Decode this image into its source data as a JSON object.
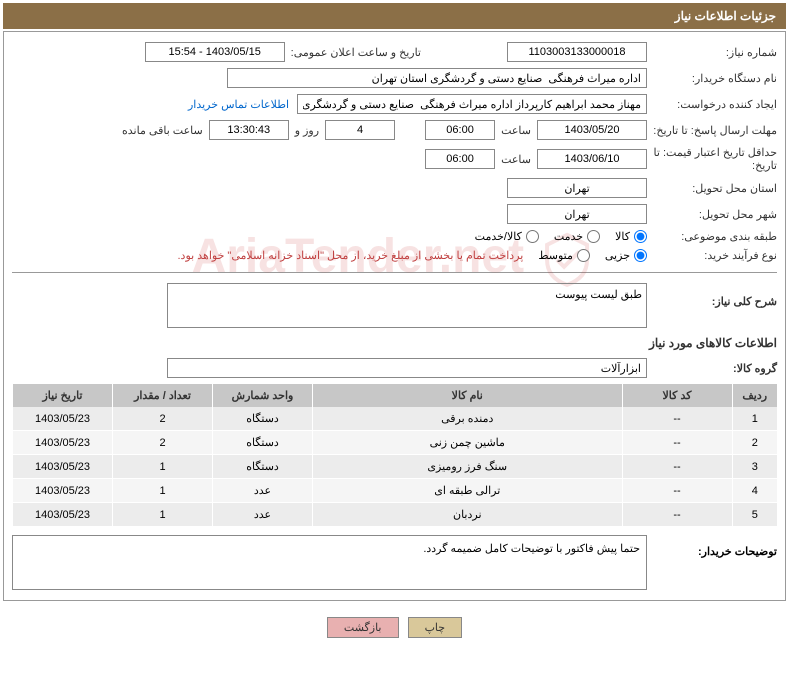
{
  "header": {
    "title": "جزئیات اطلاعات نیاز"
  },
  "fields": {
    "need_number_label": "شماره نیاز:",
    "need_number": "1103003133000018",
    "announce_date_label": "تاریخ و ساعت اعلان عمومی:",
    "announce_date": "1403/05/15 - 15:54",
    "buyer_org_label": "نام دستگاه خریدار:",
    "buyer_org": "اداره میراث فرهنگی  صنایع دستی و گردشگری استان تهران",
    "requester_label": "ایجاد کننده درخواست:",
    "requester": "مهناز محمد ابراهیم کارپرداز اداره میراث فرهنگی  صنایع دستی و گردشگری استا",
    "contact_link": "اطلاعات تماس خریدار",
    "deadline_label": "مهلت ارسال پاسخ: تا تاریخ:",
    "deadline_date": "1403/05/20",
    "time_label": "ساعت",
    "deadline_time": "06:00",
    "days_count": "4",
    "days_and": "روز و",
    "remaining_time": "13:30:43",
    "remaining_label": "ساعت باقی مانده",
    "min_valid_label": "حداقل تاریخ اعتبار قیمت: تا تاریخ:",
    "min_valid_date": "1403/06/10",
    "min_valid_time": "06:00",
    "province_label": "استان محل تحویل:",
    "province": "تهران",
    "city_label": "شهر محل تحویل:",
    "city": "تهران",
    "category_label": "طبقه بندی موضوعی:",
    "process_type_label": "نوع فرآیند خرید:",
    "payment_note": "پرداخت تمام یا بخشی از مبلغ خرید، از محل \"اسناد خزانه اسلامی\" خواهد بود.",
    "general_desc_label": "شرح کلی نیاز:",
    "general_desc": "طبق لیست پیوست",
    "goods_info_title": "اطلاعات کالاهای مورد نیاز",
    "goods_group_label": "گروه کالا:",
    "goods_group": "ابزارآلات",
    "buyer_notes_label": "توضیحات خریدار:",
    "buyer_notes": "حتما پیش فاکتور با توضیحات کامل ضمیمه گردد."
  },
  "radios": {
    "category": {
      "goods": "کالا",
      "service": "خدمت",
      "both": "کالا/خدمت"
    },
    "process": {
      "partial": "جزیی",
      "medium": "متوسط"
    }
  },
  "table": {
    "headers": {
      "row": "ردیف",
      "code": "کد کالا",
      "name": "نام کالا",
      "unit": "واحد شمارش",
      "qty": "تعداد / مقدار",
      "date": "تاریخ نیاز"
    },
    "rows": [
      {
        "row": "1",
        "code": "--",
        "name": "دمنده برقی",
        "unit": "دستگاه",
        "qty": "2",
        "date": "1403/05/23"
      },
      {
        "row": "2",
        "code": "--",
        "name": "ماشین چمن زنی",
        "unit": "دستگاه",
        "qty": "2",
        "date": "1403/05/23"
      },
      {
        "row": "3",
        "code": "--",
        "name": "سنگ فرز رومیزی",
        "unit": "دستگاه",
        "qty": "1",
        "date": "1403/05/23"
      },
      {
        "row": "4",
        "code": "--",
        "name": "ترالی طبقه ای",
        "unit": "عدد",
        "qty": "1",
        "date": "1403/05/23"
      },
      {
        "row": "5",
        "code": "--",
        "name": "نردبان",
        "unit": "عدد",
        "qty": "1",
        "date": "1403/05/23"
      }
    ]
  },
  "buttons": {
    "print": "چاپ",
    "back": "بازگشت"
  },
  "colors": {
    "header_bg": "#8b6f47",
    "table_header_bg": "#c7c7c7",
    "table_row_bg": "#ececec",
    "link_color": "#0066cc",
    "note_color": "#c04040"
  }
}
